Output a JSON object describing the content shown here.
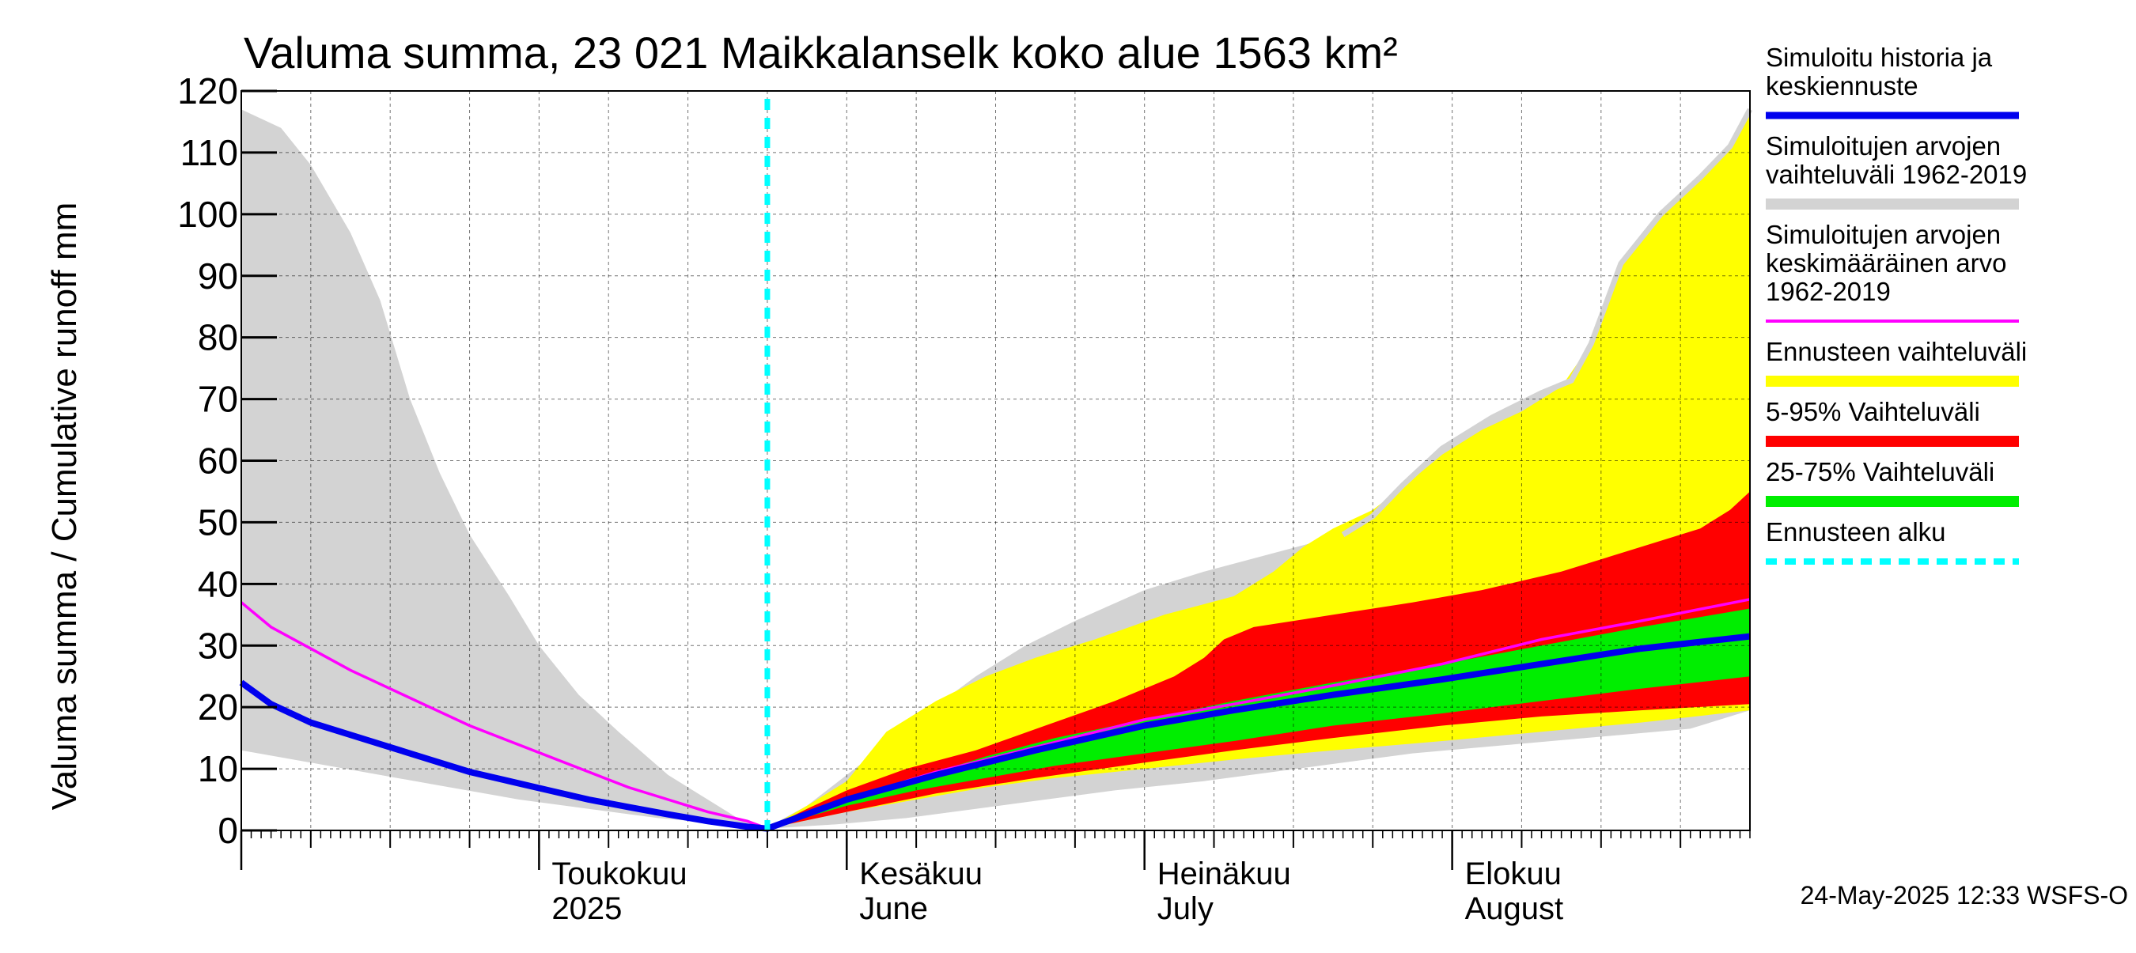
{
  "chart_data": {
    "type": "area",
    "title": "Valuma summa, 23 021 Maikkalanselk koko alue 1563 km²",
    "ylabel": "Valuma summa / Cumulative runoff    mm",
    "ylim": [
      0,
      120
    ],
    "yticks": [
      0,
      10,
      20,
      30,
      40,
      50,
      60,
      70,
      80,
      90,
      100,
      110,
      120
    ],
    "xlim": [
      "2025-04-01",
      "2025-08-31"
    ],
    "x_labels": [
      {
        "date": "2025-05-01",
        "line1": "Toukokuu",
        "line2": "2025"
      },
      {
        "date": "2025-06-01",
        "line1": "Kesäkuu",
        "line2": "June"
      },
      {
        "date": "2025-07-01",
        "line1": "Heinäkuu",
        "line2": "July"
      },
      {
        "date": "2025-08-01",
        "line1": "Elokuu",
        "line2": "August"
      }
    ],
    "grid": true,
    "forecast_start": "2025-05-24",
    "legend": {
      "placement": "right",
      "entries": [
        {
          "label_lines": [
            "Simuloitu historia ja",
            "keskiennuste"
          ],
          "color": "#0000ee",
          "style": "line"
        },
        {
          "label_lines": [
            "Simuloitujen arvojen",
            "vaihteluväli 1962-2019"
          ],
          "color": "#d3d3d3",
          "style": "band"
        },
        {
          "label_lines": [
            "Simuloitujen arvojen",
            "keskimääräinen arvo",
            "   1962-2019"
          ],
          "color": "#ff00ff",
          "style": "thin-line"
        },
        {
          "label_lines": [
            "Ennusteen vaihteluväli"
          ],
          "color": "#ffff00",
          "style": "band"
        },
        {
          "label_lines": [
            "5-95% Vaihteluväli"
          ],
          "color": "#ff0000",
          "style": "band"
        },
        {
          "label_lines": [
            "25-75% Vaihteluväli"
          ],
          "color": "#00ee00",
          "style": "band"
        },
        {
          "label_lines": [
            "Ennusteen alku"
          ],
          "color": "#00ffff",
          "style": "dashed"
        }
      ]
    },
    "series": {
      "hist_range": {
        "color": "#d3d3d3",
        "upper": [
          [
            "2025-04-01",
            117
          ],
          [
            "2025-04-05",
            114
          ],
          [
            "2025-04-08",
            108
          ],
          [
            "2025-04-12",
            97
          ],
          [
            "2025-04-15",
            86
          ],
          [
            "2025-04-18",
            70
          ],
          [
            "2025-04-21",
            58
          ],
          [
            "2025-04-24",
            48
          ],
          [
            "2025-04-28",
            38
          ],
          [
            "2025-05-01",
            30
          ],
          [
            "2025-05-05",
            22
          ],
          [
            "2025-05-09",
            16
          ],
          [
            "2025-05-14",
            9
          ],
          [
            "2025-05-18",
            5
          ],
          [
            "2025-05-21",
            2
          ],
          [
            "2025-05-24",
            0.5
          ],
          [
            "2025-05-28",
            4
          ],
          [
            "2025-06-01",
            9
          ],
          [
            "2025-06-05",
            14
          ],
          [
            "2025-06-09",
            19
          ],
          [
            "2025-06-14",
            25
          ],
          [
            "2025-06-19",
            30
          ],
          [
            "2025-06-24",
            34
          ],
          [
            "2025-07-01",
            39
          ],
          [
            "2025-07-07",
            42
          ],
          [
            "2025-07-14",
            45
          ],
          [
            "2025-07-21",
            48
          ],
          [
            "2025-07-24",
            51
          ],
          [
            "2025-07-27",
            56
          ],
          [
            "2025-07-31",
            62
          ],
          [
            "2025-08-05",
            67
          ],
          [
            "2025-08-10",
            71
          ],
          [
            "2025-08-13",
            73
          ],
          [
            "2025-08-15",
            79
          ],
          [
            "2025-08-18",
            92
          ],
          [
            "2025-08-22",
            100
          ],
          [
            "2025-08-26",
            106
          ],
          [
            "2025-08-29",
            111
          ],
          [
            "2025-08-31",
            117
          ]
        ],
        "lower": [
          [
            "2025-04-01",
            13
          ],
          [
            "2025-04-08",
            11
          ],
          [
            "2025-04-15",
            9
          ],
          [
            "2025-04-22",
            7
          ],
          [
            "2025-04-29",
            5
          ],
          [
            "2025-05-06",
            3.5
          ],
          [
            "2025-05-13",
            2
          ],
          [
            "2025-05-20",
            1
          ],
          [
            "2025-05-24",
            0.3
          ],
          [
            "2025-05-31",
            1
          ],
          [
            "2025-06-07",
            2
          ],
          [
            "2025-06-14",
            3.5
          ],
          [
            "2025-06-21",
            5
          ],
          [
            "2025-06-28",
            6.5
          ],
          [
            "2025-07-07",
            8
          ],
          [
            "2025-07-14",
            9.5
          ],
          [
            "2025-07-21",
            11
          ],
          [
            "2025-07-28",
            12.5
          ],
          [
            "2025-08-04",
            13.5
          ],
          [
            "2025-08-11",
            14.5
          ],
          [
            "2025-08-18",
            15.5
          ],
          [
            "2025-08-25",
            16.5
          ],
          [
            "2025-08-31",
            19.5
          ]
        ]
      },
      "forecast_range": {
        "color": "#ffff00",
        "upper": [
          [
            "2025-05-24",
            0.3
          ],
          [
            "2025-05-28",
            4
          ],
          [
            "2025-06-01",
            8
          ],
          [
            "2025-06-05",
            16
          ],
          [
            "2025-06-10",
            21
          ],
          [
            "2025-06-15",
            25
          ],
          [
            "2025-06-20",
            28
          ],
          [
            "2025-06-26",
            31
          ],
          [
            "2025-07-03",
            35
          ],
          [
            "2025-07-10",
            38
          ],
          [
            "2025-07-14",
            42
          ],
          [
            "2025-07-17",
            46
          ],
          [
            "2025-07-20",
            49
          ],
          [
            "2025-07-24",
            52
          ],
          [
            "2025-07-28",
            57
          ],
          [
            "2025-07-31",
            61
          ],
          [
            "2025-08-04",
            65
          ],
          [
            "2025-08-08",
            68
          ],
          [
            "2025-08-12",
            72
          ],
          [
            "2025-08-15",
            79
          ],
          [
            "2025-08-18",
            92
          ],
          [
            "2025-08-22",
            100
          ],
          [
            "2025-08-26",
            106
          ],
          [
            "2025-08-29",
            111
          ],
          [
            "2025-08-31",
            117
          ]
        ],
        "lower": [
          [
            "2025-05-24",
            0.3
          ],
          [
            "2025-06-01",
            3
          ],
          [
            "2025-06-08",
            5
          ],
          [
            "2025-06-15",
            7
          ],
          [
            "2025-06-22",
            8.5
          ],
          [
            "2025-07-01",
            10
          ],
          [
            "2025-07-10",
            11.5
          ],
          [
            "2025-07-20",
            13
          ],
          [
            "2025-07-31",
            14.5
          ],
          [
            "2025-08-10",
            16
          ],
          [
            "2025-08-20",
            17.5
          ],
          [
            "2025-08-31",
            19.5
          ]
        ]
      },
      "p5_95": {
        "color": "#ff0000",
        "upper": [
          [
            "2025-05-24",
            0.3
          ],
          [
            "2025-05-28",
            3.5
          ],
          [
            "2025-06-01",
            6.5
          ],
          [
            "2025-06-07",
            10
          ],
          [
            "2025-06-14",
            13
          ],
          [
            "2025-06-21",
            17
          ],
          [
            "2025-06-28",
            21
          ],
          [
            "2025-07-04",
            25
          ],
          [
            "2025-07-07",
            28
          ],
          [
            "2025-07-09",
            31
          ],
          [
            "2025-07-12",
            33
          ],
          [
            "2025-07-20",
            35
          ],
          [
            "2025-07-28",
            37
          ],
          [
            "2025-08-04",
            39
          ],
          [
            "2025-08-12",
            42
          ],
          [
            "2025-08-20",
            46
          ],
          [
            "2025-08-26",
            49
          ],
          [
            "2025-08-29",
            52
          ],
          [
            "2025-08-31",
            55
          ]
        ],
        "lower": [
          [
            "2025-05-24",
            0.3
          ],
          [
            "2025-06-01",
            3
          ],
          [
            "2025-06-10",
            6
          ],
          [
            "2025-06-20",
            8.5
          ],
          [
            "2025-07-01",
            11
          ],
          [
            "2025-07-10",
            13
          ],
          [
            "2025-07-20",
            15
          ],
          [
            "2025-07-31",
            17
          ],
          [
            "2025-08-10",
            18.5
          ],
          [
            "2025-08-20",
            19.5
          ],
          [
            "2025-08-31",
            20.5
          ]
        ]
      },
      "p25_75": {
        "color": "#00ee00",
        "upper": [
          [
            "2025-05-24",
            0.3
          ],
          [
            "2025-06-01",
            5
          ],
          [
            "2025-06-08",
            8.5
          ],
          [
            "2025-06-15",
            12
          ],
          [
            "2025-06-22",
            15
          ],
          [
            "2025-07-01",
            18
          ],
          [
            "2025-07-10",
            21
          ],
          [
            "2025-07-20",
            24
          ],
          [
            "2025-07-31",
            27
          ],
          [
            "2025-08-10",
            30
          ],
          [
            "2025-08-20",
            33
          ],
          [
            "2025-08-31",
            36
          ]
        ],
        "lower": [
          [
            "2025-05-24",
            0.3
          ],
          [
            "2025-06-01",
            4
          ],
          [
            "2025-06-08",
            6.5
          ],
          [
            "2025-06-15",
            8.5
          ],
          [
            "2025-06-22",
            10.5
          ],
          [
            "2025-07-01",
            12.5
          ],
          [
            "2025-07-10",
            14.5
          ],
          [
            "2025-07-20",
            17
          ],
          [
            "2025-07-31",
            19
          ],
          [
            "2025-08-10",
            21
          ],
          [
            "2025-08-20",
            23
          ],
          [
            "2025-08-31",
            25
          ]
        ]
      },
      "hist_mean": {
        "color": "#ff00ff",
        "points": [
          [
            "2025-04-01",
            37
          ],
          [
            "2025-04-04",
            33
          ],
          [
            "2025-04-08",
            29.5
          ],
          [
            "2025-04-12",
            26
          ],
          [
            "2025-04-16",
            23
          ],
          [
            "2025-04-20",
            20
          ],
          [
            "2025-04-24",
            17
          ],
          [
            "2025-04-28",
            14.5
          ],
          [
            "2025-05-02",
            12
          ],
          [
            "2025-05-06",
            9.5
          ],
          [
            "2025-05-10",
            7
          ],
          [
            "2025-05-14",
            5
          ],
          [
            "2025-05-18",
            3
          ],
          [
            "2025-05-22",
            1.5
          ],
          [
            "2025-05-24",
            0.3
          ],
          [
            "2025-06-01",
            5
          ],
          [
            "2025-06-10",
            9.5
          ],
          [
            "2025-06-20",
            13.5
          ],
          [
            "2025-07-01",
            18
          ],
          [
            "2025-07-10",
            20.5
          ],
          [
            "2025-07-20",
            23.5
          ],
          [
            "2025-07-31",
            27
          ],
          [
            "2025-08-10",
            31
          ],
          [
            "2025-08-20",
            34
          ],
          [
            "2025-08-31",
            37.5
          ]
        ]
      },
      "simulated_mean": {
        "color": "#0000ee",
        "points": [
          [
            "2025-04-01",
            24
          ],
          [
            "2025-04-04",
            20.5
          ],
          [
            "2025-04-08",
            17.5
          ],
          [
            "2025-04-12",
            15.5
          ],
          [
            "2025-04-16",
            13.5
          ],
          [
            "2025-04-20",
            11.5
          ],
          [
            "2025-04-24",
            9.5
          ],
          [
            "2025-04-28",
            8
          ],
          [
            "2025-05-02",
            6.5
          ],
          [
            "2025-05-06",
            5
          ],
          [
            "2025-05-10",
            3.8
          ],
          [
            "2025-05-14",
            2.6
          ],
          [
            "2025-05-18",
            1.5
          ],
          [
            "2025-05-22",
            0.6
          ],
          [
            "2025-05-24",
            0.3
          ],
          [
            "2025-06-01",
            5
          ],
          [
            "2025-06-10",
            9
          ],
          [
            "2025-06-20",
            13
          ],
          [
            "2025-07-01",
            17
          ],
          [
            "2025-07-10",
            19.5
          ],
          [
            "2025-07-20",
            22
          ],
          [
            "2025-07-31",
            24.5
          ],
          [
            "2025-08-10",
            27
          ],
          [
            "2025-08-20",
            29.5
          ],
          [
            "2025-08-31",
            31.5
          ]
        ]
      }
    }
  },
  "footer": "24-May-2025 12:33 WSFS-O"
}
